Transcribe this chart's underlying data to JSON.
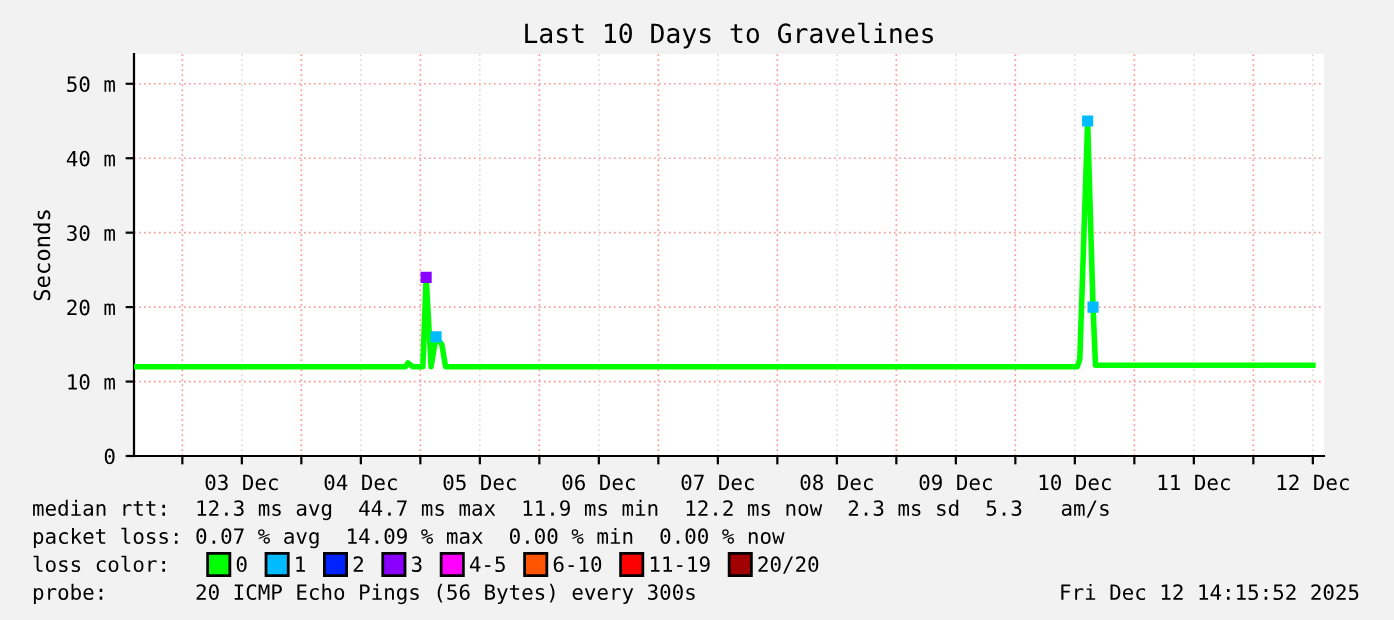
{
  "chart_data": {
    "type": "line",
    "title": "Last 10 Days to Gravelines",
    "ylabel": "Seconds",
    "xlim": [
      "2025-12-02T14:15",
      "2025-12-12T14:15"
    ],
    "ylim": [
      0,
      54
    ],
    "xticks": [
      {
        "value": "2025-12-03T00:00",
        "label": null
      },
      {
        "value": "2025-12-03T12:00",
        "label": "03 Dec"
      },
      {
        "value": "2025-12-04T00:00",
        "label": null
      },
      {
        "value": "2025-12-04T12:00",
        "label": "04 Dec"
      },
      {
        "value": "2025-12-05T00:00",
        "label": null
      },
      {
        "value": "2025-12-05T12:00",
        "label": "05 Dec"
      },
      {
        "value": "2025-12-06T00:00",
        "label": null
      },
      {
        "value": "2025-12-06T12:00",
        "label": "06 Dec"
      },
      {
        "value": "2025-12-07T00:00",
        "label": null
      },
      {
        "value": "2025-12-07T12:00",
        "label": "07 Dec"
      },
      {
        "value": "2025-12-08T00:00",
        "label": null
      },
      {
        "value": "2025-12-08T12:00",
        "label": "08 Dec"
      },
      {
        "value": "2025-12-09T00:00",
        "label": null
      },
      {
        "value": "2025-12-09T12:00",
        "label": "09 Dec"
      },
      {
        "value": "2025-12-10T00:00",
        "label": null
      },
      {
        "value": "2025-12-10T12:00",
        "label": "10 Dec"
      },
      {
        "value": "2025-12-11T00:00",
        "label": null
      },
      {
        "value": "2025-12-11T12:00",
        "label": "11 Dec"
      },
      {
        "value": "2025-12-12T00:00",
        "label": null
      },
      {
        "value": "2025-12-12T12:00",
        "label": "12 Dec"
      }
    ],
    "yticks": [
      0,
      {
        "value": 10,
        "label": "10 m"
      },
      {
        "value": 20,
        "label": "20 m"
      },
      {
        "value": 30,
        "label": "30 m"
      },
      {
        "value": 40,
        "label": "40 m"
      },
      {
        "value": 50,
        "label": "50 m"
      }
    ],
    "grid": true,
    "legend": "bottom",
    "legend_title": "loss color:",
    "series": [
      {
        "name": "0",
        "color": "#00ff00",
        "x": [
          "2025-12-02T14:15",
          "2025-12-04T21:00",
          "2025-12-04T21:30",
          "2025-12-04T22:30",
          "2025-12-05T00:30",
          "2025-12-05T01:10",
          "2025-12-05T02:10",
          "2025-12-05T03:10",
          "2025-12-05T04:20",
          "2025-12-05T05:05",
          "2025-12-10T12:30",
          "2025-12-10T13:00",
          "2025-12-10T14:35",
          "2025-12-10T15:40",
          "2025-12-10T16:10",
          "2025-12-12T12:00"
        ],
        "values": [
          12,
          12,
          12.5,
          12,
          12,
          24,
          12,
          16,
          15,
          12,
          12,
          13,
          45,
          20,
          12.2,
          12.2
        ]
      },
      {
        "name": "1",
        "color": "#00bbff",
        "type": "scatter",
        "marker": "square",
        "x": [
          "2025-12-05T03:10",
          "2025-12-10T14:35",
          "2025-12-10T15:40"
        ],
        "values": [
          16,
          45,
          20
        ]
      },
      {
        "name": "2",
        "color": "#0022ff",
        "type": "scatter"
      },
      {
        "name": "3",
        "color": "#8a00ff",
        "type": "scatter",
        "marker": "square",
        "x": [
          "2025-12-05T01:10"
        ],
        "values": [
          24
        ]
      },
      {
        "name": "4-5",
        "color": "#ff00ff",
        "type": "scatter"
      },
      {
        "name": "6-10",
        "color": "#ff5500",
        "type": "scatter"
      },
      {
        "name": "11-19",
        "color": "#ff0000",
        "type": "scatter"
      },
      {
        "name": "20/20",
        "color": "#a10000",
        "type": "scatter"
      }
    ],
    "annotations": [
      "median rtt:  12.3 ms avg  44.7 ms max  11.9 ms min  12.2 ms now  2.3 ms sd  5.3   am/s",
      "packet loss: 0.07 % avg  14.09 % max  0.00 % min  0.00 % now",
      "probe:       20 ICMP Echo Pings (56 Bytes) every 300s",
      "Fri Dec 12 14:15:52 2025"
    ]
  }
}
